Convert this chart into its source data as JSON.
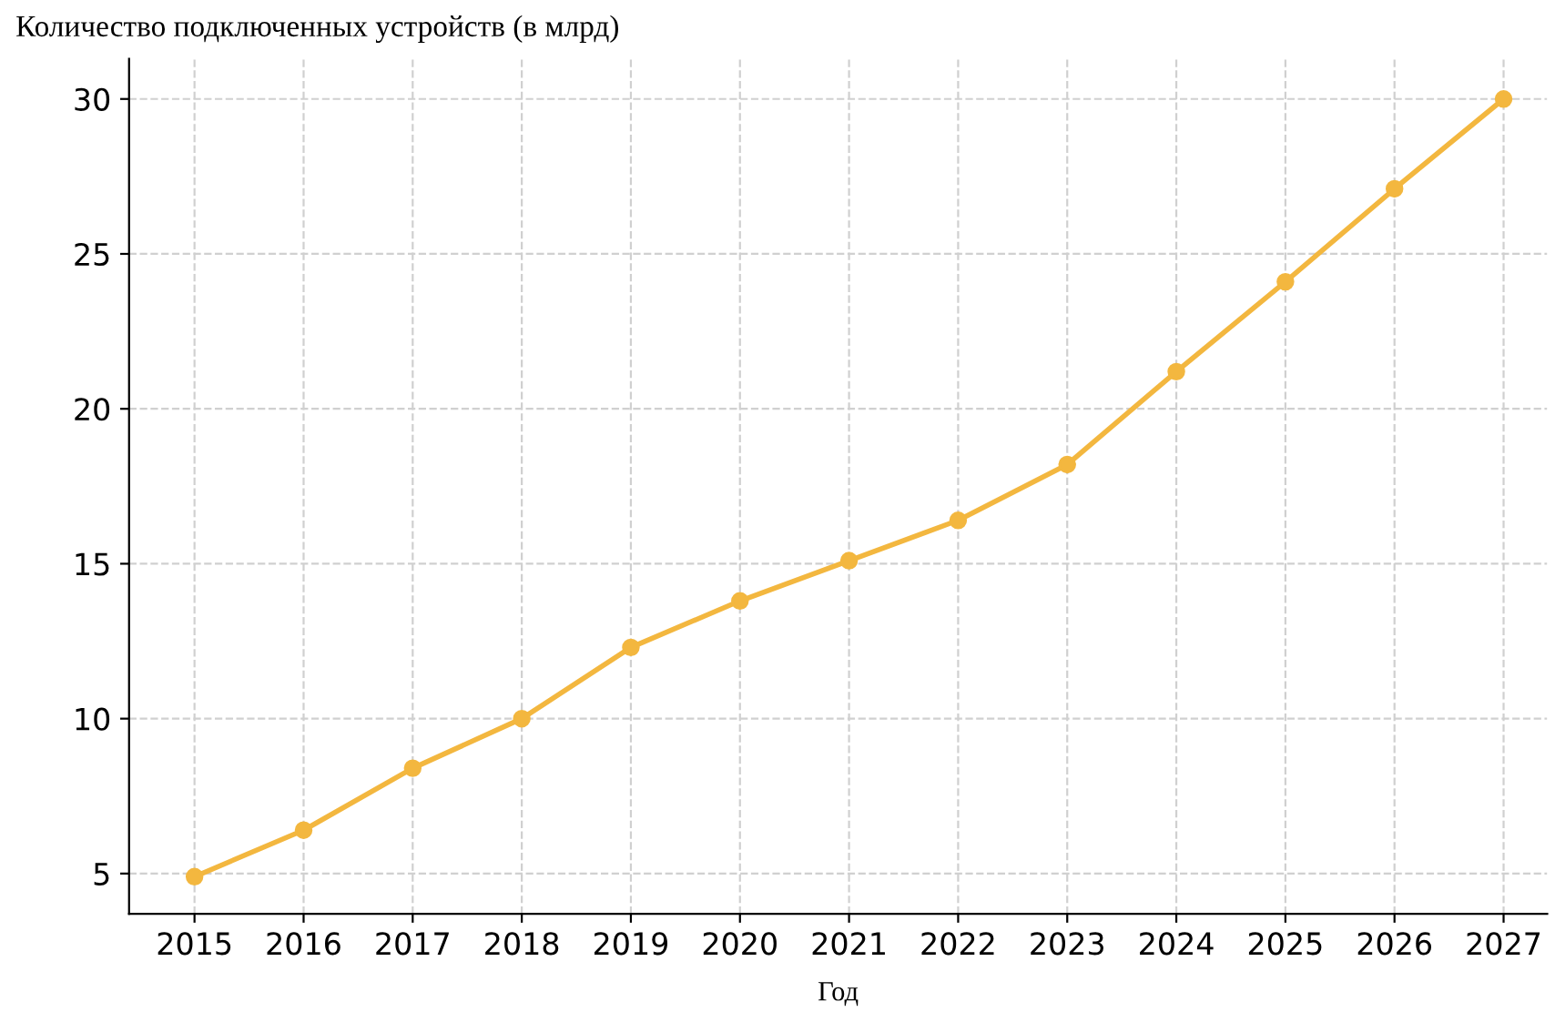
{
  "chart_data": {
    "type": "line",
    "title": "Количество подключенных устройств (в млрд)",
    "xlabel": "Год",
    "x": [
      2015,
      2016,
      2017,
      2018,
      2019,
      2020,
      2021,
      2022,
      2023,
      2024,
      2025,
      2026,
      2027
    ],
    "series": [
      {
        "color": "#f3b73f",
        "values": [
          4.9,
          6.4,
          8.4,
          10.0,
          12.3,
          13.8,
          15.1,
          16.4,
          18.2,
          21.2,
          24.1,
          27.1,
          30.0
        ]
      }
    ],
    "xlim": [
      2014.4,
      2027.4
    ],
    "ylim": [
      3.7,
      31.3
    ],
    "xticks": [
      2015,
      2016,
      2017,
      2018,
      2019,
      2020,
      2021,
      2022,
      2023,
      2024,
      2025,
      2026,
      2027
    ],
    "yticks": [
      5,
      10,
      15,
      20,
      25,
      30
    ],
    "grid": true,
    "marker": "circle",
    "line_style": "solid",
    "legend": false
  }
}
